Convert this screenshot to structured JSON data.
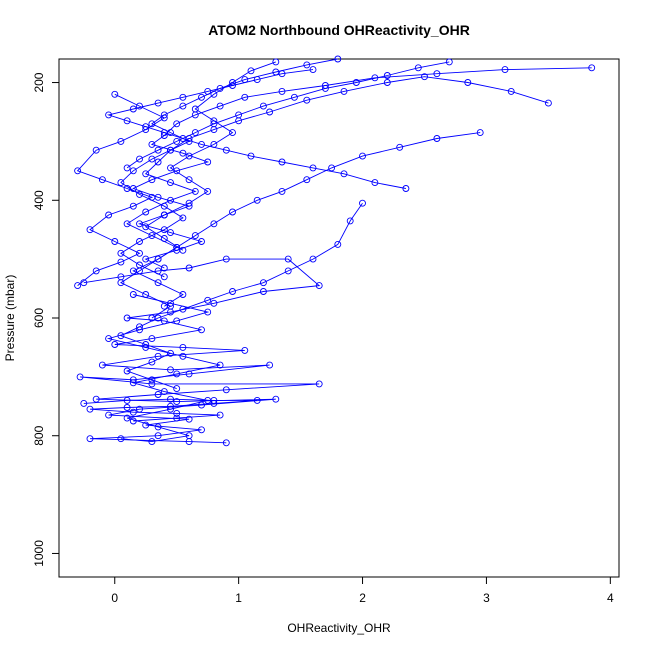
{
  "chart_data": {
    "type": "line",
    "title": "ATOM2 Northbound OHReactivity_OHR",
    "xlabel": "OHReactivity_OHR",
    "ylabel": "Pressure (mbar)",
    "xlim": [
      -0.45,
      4.07
    ],
    "ylim": [
      1040,
      160
    ],
    "y_reversed": true,
    "x_ticks": [
      0,
      1,
      2,
      3,
      4
    ],
    "y_ticks": [
      200,
      400,
      600,
      800,
      1000
    ],
    "grid": false,
    "legend": "none",
    "series_color": "#0000ff",
    "marker": "open-circle",
    "series": [
      {
        "points": [
          [
            -0.25,
            540
          ],
          [
            0.05,
            530
          ],
          [
            0.35,
            520
          ],
          [
            0.6,
            515
          ],
          [
            0.9,
            500
          ],
          [
            1.4,
            500
          ],
          [
            1.65,
            545
          ],
          [
            1.2,
            555
          ],
          [
            0.8,
            575
          ],
          [
            0.45,
            590
          ],
          [
            0.1,
            600
          ],
          [
            0.4,
            605
          ],
          [
            0.7,
            620
          ],
          [
            0.3,
            635
          ],
          [
            0.0,
            645
          ],
          [
            0.55,
            650
          ],
          [
            1.05,
            655
          ],
          [
            0.35,
            665
          ],
          [
            -0.1,
            680
          ],
          [
            0.45,
            688
          ],
          [
            1.25,
            680
          ],
          [
            0.6,
            695
          ],
          [
            0.15,
            705
          ],
          [
            -0.28,
            700
          ],
          [
            0.3,
            712
          ],
          [
            1.65,
            712
          ],
          [
            0.9,
            722
          ],
          [
            0.35,
            730
          ],
          [
            -0.15,
            738
          ],
          [
            0.5,
            742
          ],
          [
            1.3,
            738
          ],
          [
            0.7,
            748
          ],
          [
            0.2,
            755
          ],
          [
            -0.05,
            765
          ],
          [
            0.6,
            772
          ],
          [
            0.25,
            782
          ],
          [
            0.7,
            790
          ],
          [
            0.35,
            800
          ],
          [
            -0.2,
            805
          ],
          [
            0.6,
            810
          ],
          [
            0.9,
            812
          ]
        ]
      },
      {
        "points": [
          [
            3.85,
            175
          ],
          [
            3.15,
            178
          ],
          [
            2.6,
            185
          ],
          [
            2.1,
            192
          ],
          [
            1.7,
            205
          ],
          [
            1.35,
            215
          ],
          [
            1.05,
            225
          ],
          [
            0.85,
            240
          ],
          [
            0.65,
            255
          ],
          [
            0.5,
            270
          ],
          [
            0.4,
            290
          ],
          [
            0.3,
            305
          ],
          [
            0.55,
            320
          ],
          [
            0.75,
            335
          ],
          [
            0.5,
            350
          ],
          [
            0.3,
            365
          ],
          [
            0.15,
            380
          ],
          [
            0.35,
            395
          ],
          [
            0.6,
            410
          ],
          [
            0.4,
            425
          ],
          [
            0.2,
            440
          ],
          [
            0.45,
            455
          ],
          [
            0.7,
            470
          ],
          [
            0.5,
            485
          ],
          [
            0.25,
            500
          ],
          [
            0.4,
            515
          ]
        ]
      },
      {
        "points": [
          [
            3.5,
            235
          ],
          [
            3.2,
            215
          ],
          [
            2.85,
            200
          ],
          [
            2.5,
            190
          ],
          [
            2.2,
            200
          ],
          [
            1.85,
            215
          ],
          [
            1.55,
            230
          ],
          [
            1.25,
            250
          ],
          [
            1.0,
            265
          ],
          [
            0.8,
            280
          ],
          [
            0.6,
            295
          ],
          [
            0.45,
            315
          ],
          [
            0.35,
            335
          ],
          [
            0.25,
            355
          ],
          [
            0.45,
            370
          ],
          [
            0.65,
            385
          ],
          [
            0.45,
            400
          ],
          [
            0.25,
            420
          ],
          [
            0.1,
            440
          ],
          [
            0.3,
            460
          ],
          [
            0.5,
            480
          ],
          [
            0.35,
            500
          ],
          [
            0.15,
            520
          ],
          [
            0.35,
            540
          ],
          [
            0.55,
            560
          ],
          [
            0.4,
            580
          ]
        ]
      },
      {
        "points": [
          [
            2.95,
            285
          ],
          [
            2.6,
            295
          ],
          [
            2.3,
            310
          ],
          [
            2.0,
            325
          ],
          [
            1.75,
            345
          ],
          [
            1.55,
            365
          ],
          [
            1.35,
            385
          ],
          [
            1.15,
            400
          ],
          [
            0.95,
            420
          ],
          [
            0.8,
            440
          ],
          [
            0.65,
            460
          ],
          [
            0.5,
            480
          ],
          [
            0.35,
            500
          ],
          [
            0.2,
            520
          ],
          [
            0.05,
            540
          ],
          [
            0.25,
            560
          ],
          [
            0.45,
            580
          ],
          [
            0.3,
            600
          ]
        ]
      },
      {
        "points": [
          [
            2.35,
            380
          ],
          [
            2.1,
            370
          ],
          [
            1.85,
            355
          ],
          [
            1.6,
            345
          ],
          [
            1.35,
            335
          ],
          [
            1.1,
            325
          ],
          [
            0.9,
            315
          ],
          [
            0.7,
            305
          ],
          [
            0.55,
            295
          ],
          [
            0.4,
            285
          ],
          [
            0.25,
            275
          ],
          [
            0.1,
            265
          ],
          [
            -0.05,
            255
          ],
          [
            0.15,
            245
          ],
          [
            0.35,
            235
          ],
          [
            0.55,
            225
          ],
          [
            0.75,
            215
          ],
          [
            0.95,
            205
          ],
          [
            1.15,
            195
          ],
          [
            1.35,
            185
          ],
          [
            1.6,
            178
          ]
        ]
      },
      {
        "points": [
          [
            2.0,
            405
          ],
          [
            1.9,
            435
          ],
          [
            1.8,
            475
          ],
          [
            1.6,
            500
          ],
          [
            1.4,
            520
          ],
          [
            1.2,
            540
          ],
          [
            0.95,
            555
          ],
          [
            0.75,
            570
          ],
          [
            0.55,
            585
          ],
          [
            0.35,
            600
          ],
          [
            0.2,
            615
          ],
          [
            0.05,
            630
          ],
          [
            0.25,
            645
          ],
          [
            0.45,
            660
          ],
          [
            0.3,
            675
          ],
          [
            0.1,
            690
          ],
          [
            0.3,
            705
          ],
          [
            0.5,
            720
          ]
        ]
      },
      {
        "points": [
          [
            0.0,
            220
          ],
          [
            0.2,
            240
          ],
          [
            0.4,
            260
          ],
          [
            0.25,
            280
          ],
          [
            0.05,
            300
          ],
          [
            -0.15,
            315
          ],
          [
            -0.3,
            350
          ],
          [
            -0.1,
            365
          ],
          [
            0.1,
            380
          ],
          [
            0.3,
            395
          ],
          [
            0.15,
            410
          ],
          [
            -0.05,
            425
          ],
          [
            -0.2,
            450
          ],
          [
            0.0,
            470
          ],
          [
            0.2,
            490
          ],
          [
            0.05,
            505
          ],
          [
            -0.15,
            520
          ],
          [
            -0.3,
            545
          ]
        ]
      },
      {
        "points": [
          [
            1.3,
            165
          ],
          [
            1.1,
            180
          ],
          [
            0.95,
            200
          ],
          [
            0.8,
            220
          ],
          [
            0.65,
            245
          ],
          [
            0.8,
            265
          ],
          [
            0.95,
            285
          ],
          [
            0.8,
            305
          ],
          [
            0.6,
            325
          ],
          [
            0.45,
            345
          ],
          [
            0.6,
            365
          ],
          [
            0.75,
            385
          ],
          [
            0.6,
            405
          ],
          [
            0.4,
            425
          ],
          [
            0.25,
            445
          ],
          [
            0.4,
            465
          ],
          [
            0.55,
            485
          ]
        ]
      },
      {
        "points": [
          [
            2.7,
            165
          ],
          [
            2.45,
            175
          ],
          [
            2.2,
            188
          ],
          [
            1.95,
            200
          ],
          [
            1.7,
            210
          ],
          [
            1.45,
            225
          ],
          [
            1.2,
            240
          ],
          [
            1.0,
            255
          ],
          [
            0.8,
            270
          ],
          [
            0.65,
            285
          ],
          [
            0.5,
            300
          ],
          [
            0.35,
            315
          ],
          [
            0.2,
            330
          ],
          [
            0.1,
            345
          ]
        ]
      },
      {
        "points": [
          [
            0.15,
            560
          ],
          [
            0.45,
            575
          ],
          [
            0.75,
            590
          ],
          [
            0.5,
            605
          ],
          [
            0.2,
            620
          ],
          [
            -0.05,
            635
          ],
          [
            0.25,
            650
          ],
          [
            0.55,
            665
          ],
          [
            0.85,
            680
          ],
          [
            0.5,
            695
          ],
          [
            0.15,
            710
          ],
          [
            0.4,
            725
          ],
          [
            0.75,
            740
          ],
          [
            0.45,
            755
          ],
          [
            0.1,
            770
          ],
          [
            0.35,
            785
          ],
          [
            0.6,
            800
          ],
          [
            0.3,
            810
          ],
          [
            0.05,
            805
          ]
        ]
      },
      {
        "points": [
          [
            -0.25,
            745
          ],
          [
            0.1,
            740
          ],
          [
            0.45,
            738
          ],
          [
            0.8,
            740
          ],
          [
            1.15,
            740
          ],
          [
            0.8,
            745
          ],
          [
            0.45,
            750
          ],
          [
            0.1,
            752
          ],
          [
            -0.2,
            755
          ],
          [
            0.15,
            760
          ],
          [
            0.5,
            762
          ],
          [
            0.85,
            765
          ],
          [
            0.5,
            770
          ],
          [
            0.15,
            775
          ]
        ]
      },
      {
        "points": [
          [
            1.8,
            160
          ],
          [
            1.55,
            170
          ],
          [
            1.3,
            182
          ],
          [
            1.05,
            195
          ],
          [
            0.85,
            210
          ],
          [
            0.7,
            225
          ],
          [
            0.55,
            240
          ],
          [
            0.4,
            255
          ],
          [
            0.3,
            270
          ],
          [
            0.45,
            285
          ],
          [
            0.6,
            300
          ],
          [
            0.45,
            315
          ],
          [
            0.3,
            330
          ],
          [
            0.15,
            350
          ],
          [
            0.05,
            370
          ],
          [
            0.2,
            390
          ],
          [
            0.4,
            410
          ],
          [
            0.55,
            430
          ],
          [
            0.4,
            450
          ],
          [
            0.2,
            470
          ],
          [
            0.05,
            490
          ],
          [
            0.2,
            510
          ],
          [
            0.4,
            530
          ]
        ]
      }
    ]
  }
}
